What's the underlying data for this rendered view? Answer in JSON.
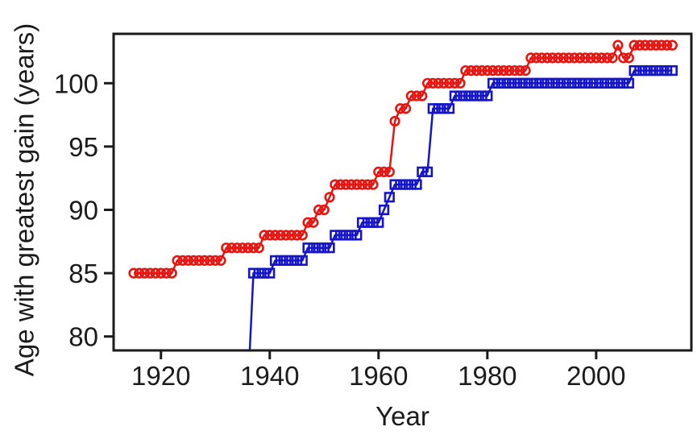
{
  "figure": {
    "background": "#ffffff",
    "frame_color": "#1b1b1b",
    "tick_label_color": "#1b1b1b"
  },
  "chart_data": {
    "type": "line",
    "title": "",
    "xlabel": "Year",
    "ylabel": "Age with greatest gain (years)",
    "xlim": [
      1911.3,
      2017.5
    ],
    "ylim": [
      78.9,
      103.9
    ],
    "x_ticks": [
      1920,
      1940,
      1960,
      1980,
      2000
    ],
    "y_ticks": [
      80,
      85,
      90,
      95,
      100
    ],
    "grid": false,
    "legend": "none",
    "series": [
      {
        "name": "blue-squares",
        "marker": "square",
        "color": "#1414cb",
        "points": [
          [
            1936,
            76
          ],
          [
            1937,
            85
          ],
          [
            1938,
            85
          ],
          [
            1939,
            85
          ],
          [
            1940,
            85
          ],
          [
            1941,
            86
          ],
          [
            1942,
            86
          ],
          [
            1943,
            86
          ],
          [
            1944,
            86
          ],
          [
            1945,
            86
          ],
          [
            1946,
            86
          ],
          [
            1947,
            87
          ],
          [
            1948,
            87
          ],
          [
            1949,
            87
          ],
          [
            1950,
            87
          ],
          [
            1951,
            87
          ],
          [
            1952,
            88
          ],
          [
            1953,
            88
          ],
          [
            1954,
            88
          ],
          [
            1955,
            88
          ],
          [
            1956,
            88
          ],
          [
            1957,
            89
          ],
          [
            1958,
            89
          ],
          [
            1959,
            89
          ],
          [
            1960,
            89
          ],
          [
            1961,
            90
          ],
          [
            1962,
            91
          ],
          [
            1963,
            92
          ],
          [
            1964,
            92
          ],
          [
            1965,
            92
          ],
          [
            1966,
            92
          ],
          [
            1967,
            92
          ],
          [
            1968,
            93
          ],
          [
            1969,
            93
          ],
          [
            1970,
            98
          ],
          [
            1971,
            98
          ],
          [
            1972,
            98
          ],
          [
            1973,
            98
          ],
          [
            1974,
            99
          ],
          [
            1975,
            99
          ],
          [
            1976,
            99
          ],
          [
            1977,
            99
          ],
          [
            1978,
            99
          ],
          [
            1979,
            99
          ],
          [
            1980,
            99
          ],
          [
            1981,
            100
          ],
          [
            1982,
            100
          ],
          [
            1983,
            100
          ],
          [
            1984,
            100
          ],
          [
            1985,
            100
          ],
          [
            1986,
            100
          ],
          [
            1987,
            100
          ],
          [
            1988,
            100
          ],
          [
            1989,
            100
          ],
          [
            1990,
            100
          ],
          [
            1991,
            100
          ],
          [
            1992,
            100
          ],
          [
            1993,
            100
          ],
          [
            1994,
            100
          ],
          [
            1995,
            100
          ],
          [
            1996,
            100
          ],
          [
            1997,
            100
          ],
          [
            1998,
            100
          ],
          [
            1999,
            100
          ],
          [
            2000,
            100
          ],
          [
            2001,
            100
          ],
          [
            2002,
            100
          ],
          [
            2003,
            100
          ],
          [
            2004,
            100
          ],
          [
            2005,
            100
          ],
          [
            2006,
            100
          ],
          [
            2007,
            101
          ],
          [
            2008,
            101
          ],
          [
            2009,
            101
          ],
          [
            2010,
            101
          ],
          [
            2011,
            101
          ],
          [
            2012,
            101
          ],
          [
            2013,
            101
          ],
          [
            2014,
            101
          ]
        ]
      },
      {
        "name": "red-circles",
        "marker": "circle",
        "color": "#e71410",
        "points": [
          [
            1915,
            85
          ],
          [
            1916,
            85
          ],
          [
            1917,
            85
          ],
          [
            1918,
            85
          ],
          [
            1919,
            85
          ],
          [
            1920,
            85
          ],
          [
            1921,
            85
          ],
          [
            1922,
            85
          ],
          [
            1923,
            86
          ],
          [
            1924,
            86
          ],
          [
            1925,
            86
          ],
          [
            1926,
            86
          ],
          [
            1927,
            86
          ],
          [
            1928,
            86
          ],
          [
            1929,
            86
          ],
          [
            1930,
            86
          ],
          [
            1931,
            86
          ],
          [
            1932,
            87
          ],
          [
            1933,
            87
          ],
          [
            1934,
            87
          ],
          [
            1935,
            87
          ],
          [
            1936,
            87
          ],
          [
            1937,
            87
          ],
          [
            1938,
            87
          ],
          [
            1939,
            88
          ],
          [
            1940,
            88
          ],
          [
            1941,
            88
          ],
          [
            1942,
            88
          ],
          [
            1943,
            88
          ],
          [
            1944,
            88
          ],
          [
            1945,
            88
          ],
          [
            1946,
            88
          ],
          [
            1947,
            89
          ],
          [
            1948,
            89
          ],
          [
            1949,
            90
          ],
          [
            1950,
            90
          ],
          [
            1951,
            91
          ],
          [
            1952,
            92
          ],
          [
            1953,
            92
          ],
          [
            1954,
            92
          ],
          [
            1955,
            92
          ],
          [
            1956,
            92
          ],
          [
            1957,
            92
          ],
          [
            1958,
            92
          ],
          [
            1959,
            92
          ],
          [
            1960,
            93
          ],
          [
            1961,
            93
          ],
          [
            1962,
            93
          ],
          [
            1963,
            97
          ],
          [
            1964,
            98
          ],
          [
            1965,
            98
          ],
          [
            1966,
            99
          ],
          [
            1967,
            99
          ],
          [
            1968,
            99
          ],
          [
            1969,
            100
          ],
          [
            1970,
            100
          ],
          [
            1971,
            100
          ],
          [
            1972,
            100
          ],
          [
            1973,
            100
          ],
          [
            1974,
            100
          ],
          [
            1975,
            100
          ],
          [
            1976,
            101
          ],
          [
            1977,
            101
          ],
          [
            1978,
            101
          ],
          [
            1979,
            101
          ],
          [
            1980,
            101
          ],
          [
            1981,
            101
          ],
          [
            1982,
            101
          ],
          [
            1983,
            101
          ],
          [
            1984,
            101
          ],
          [
            1985,
            101
          ],
          [
            1986,
            101
          ],
          [
            1987,
            101
          ],
          [
            1988,
            102
          ],
          [
            1989,
            102
          ],
          [
            1990,
            102
          ],
          [
            1991,
            102
          ],
          [
            1992,
            102
          ],
          [
            1993,
            102
          ],
          [
            1994,
            102
          ],
          [
            1995,
            102
          ],
          [
            1996,
            102
          ],
          [
            1997,
            102
          ],
          [
            1998,
            102
          ],
          [
            1999,
            102
          ],
          [
            2000,
            102
          ],
          [
            2001,
            102
          ],
          [
            2002,
            102
          ],
          [
            2003,
            102
          ],
          [
            2004,
            103
          ],
          [
            2005,
            102
          ],
          [
            2006,
            102
          ],
          [
            2007,
            103
          ],
          [
            2008,
            103
          ],
          [
            2009,
            103
          ],
          [
            2010,
            103
          ],
          [
            2011,
            103
          ],
          [
            2012,
            103
          ],
          [
            2013,
            103
          ],
          [
            2014,
            103
          ]
        ]
      }
    ]
  }
}
